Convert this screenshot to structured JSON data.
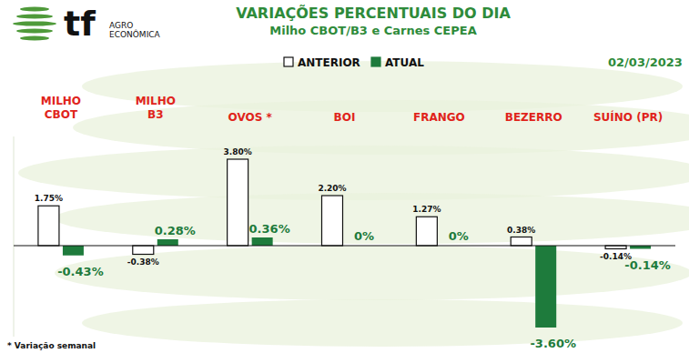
{
  "chart_data": {
    "type": "bar",
    "title": "VARIAÇÕES PERCENTUAIS DO DIA",
    "subtitle": "Milho CBOT/B3 e Carnes CEPEA",
    "categories": [
      "MILHO\nCBOT",
      "MILHO\nB3",
      "OVOS *",
      "BOI",
      "FRANGO",
      "BEZERRO",
      "SUÍNO (PR)"
    ],
    "series": [
      {
        "name": "ANTERIOR",
        "color": "#ffffff",
        "values": [
          1.75,
          -0.38,
          3.8,
          2.2,
          1.27,
          0.38,
          -0.14
        ],
        "value_labels": [
          "1.75%",
          "-0.38%",
          "3.80%",
          "2.20%",
          "1.27%",
          "0.38%",
          "-0.14%"
        ]
      },
      {
        "name": "ATUAL",
        "color": "#1e7b3c",
        "values": [
          -0.43,
          0.28,
          0.36,
          0,
          0,
          -3.6,
          -0.14
        ],
        "value_labels": [
          "-0.43%",
          "0.28%",
          "0.36%",
          "0%",
          "0%",
          "-3.60%",
          "-0.14%"
        ]
      }
    ],
    "ylim": [
      -4,
      4.8
    ],
    "data_labels": true,
    "tick_labels": "x",
    "grid": false,
    "legend": "top",
    "annotations": [
      "02/03/2023",
      "* Variação semanal",
      "tf",
      "AGRO",
      "ECONÔMICA"
    ]
  }
}
